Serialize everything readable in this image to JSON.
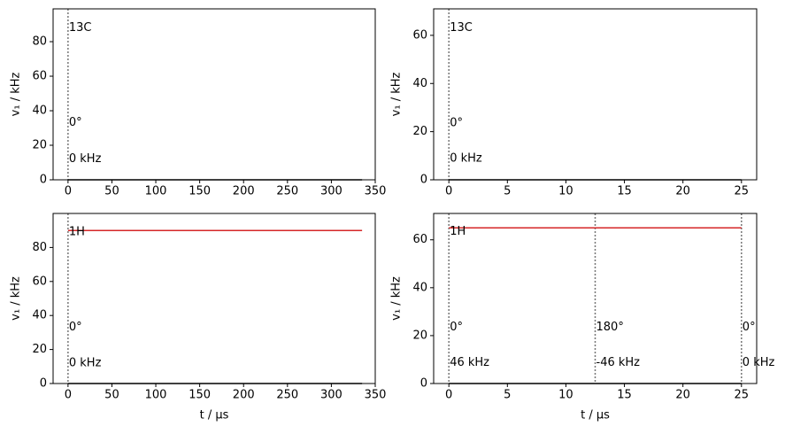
{
  "chart_data": [
    {
      "type": "line",
      "ylabel": "v₁ / kHz",
      "xlim": [
        -17,
        350
      ],
      "ylim": [
        0,
        99
      ],
      "xticks": [
        0,
        50,
        100,
        150,
        200,
        250,
        300,
        350
      ],
      "yticks": [
        0,
        20,
        40,
        60,
        80
      ],
      "x": [
        0,
        335
      ],
      "series": [
        {
          "color": "#000000",
          "values": [
            0,
            0
          ]
        }
      ],
      "vlines": [
        0
      ],
      "annotations": [
        {
          "text": "13C",
          "x": 0,
          "y": 88
        },
        {
          "text": "0°",
          "x": 0,
          "y": 33
        },
        {
          "text": "0 kHz",
          "x": 0,
          "y": 12
        }
      ]
    },
    {
      "type": "line",
      "ylabel": "v₁ / kHz",
      "xlim": [
        -1.3,
        26.3
      ],
      "ylim": [
        0,
        71
      ],
      "xticks": [
        0,
        5,
        10,
        15,
        20,
        25
      ],
      "yticks": [
        0,
        20,
        40,
        60
      ],
      "x": [
        0,
        25
      ],
      "series": [
        {
          "color": "#000000",
          "values": [
            0,
            0
          ]
        }
      ],
      "vlines": [
        0
      ],
      "annotations": [
        {
          "text": "13C",
          "x": 0,
          "y": 63
        },
        {
          "text": "0°",
          "x": 0,
          "y": 23.5
        },
        {
          "text": "0 kHz",
          "x": 0,
          "y": 8.8
        }
      ]
    },
    {
      "type": "line",
      "ylabel": "v₁ / kHz",
      "xlabel": "t / μs",
      "xlim": [
        -17,
        350
      ],
      "ylim": [
        0,
        100
      ],
      "xticks": [
        0,
        50,
        100,
        150,
        200,
        250,
        300,
        350
      ],
      "yticks": [
        0,
        20,
        40,
        60,
        80
      ],
      "x": [
        0,
        335
      ],
      "series": [
        {
          "color": "#000000",
          "values": [
            0,
            0
          ]
        },
        {
          "color": "#d62728",
          "values": [
            90,
            90
          ]
        }
      ],
      "vlines": [
        0
      ],
      "annotations": [
        {
          "text": "1H",
          "x": 0,
          "y": 89
        },
        {
          "text": "0°",
          "x": 0,
          "y": 33
        },
        {
          "text": "0 kHz",
          "x": 0,
          "y": 12
        }
      ]
    },
    {
      "type": "line",
      "ylabel": "v₁ / kHz",
      "xlabel": "t / μs",
      "xlim": [
        -1.3,
        26.3
      ],
      "ylim": [
        0,
        71
      ],
      "xticks": [
        0,
        5,
        10,
        15,
        20,
        25
      ],
      "yticks": [
        0,
        20,
        40,
        60
      ],
      "x": [
        0,
        25
      ],
      "series": [
        {
          "color": "#000000",
          "values": [
            0,
            0
          ]
        },
        {
          "color": "#d62728",
          "values": [
            65,
            65
          ]
        }
      ],
      "vlines": [
        0,
        12.5,
        25
      ],
      "annotations": [
        {
          "text": "1H",
          "x": 0,
          "y": 63.4
        },
        {
          "text": "0°",
          "x": 0,
          "y": 23.5
        },
        {
          "text": "46 kHz",
          "x": 0,
          "y": 8.6
        },
        {
          "text": "180°",
          "x": 12.5,
          "y": 23.5
        },
        {
          "text": "-46 kHz",
          "x": 12.5,
          "y": 8.6
        },
        {
          "text": "0°",
          "x": 25,
          "y": 23.5
        },
        {
          "text": "0 kHz",
          "x": 25,
          "y": 8.6
        }
      ]
    }
  ]
}
